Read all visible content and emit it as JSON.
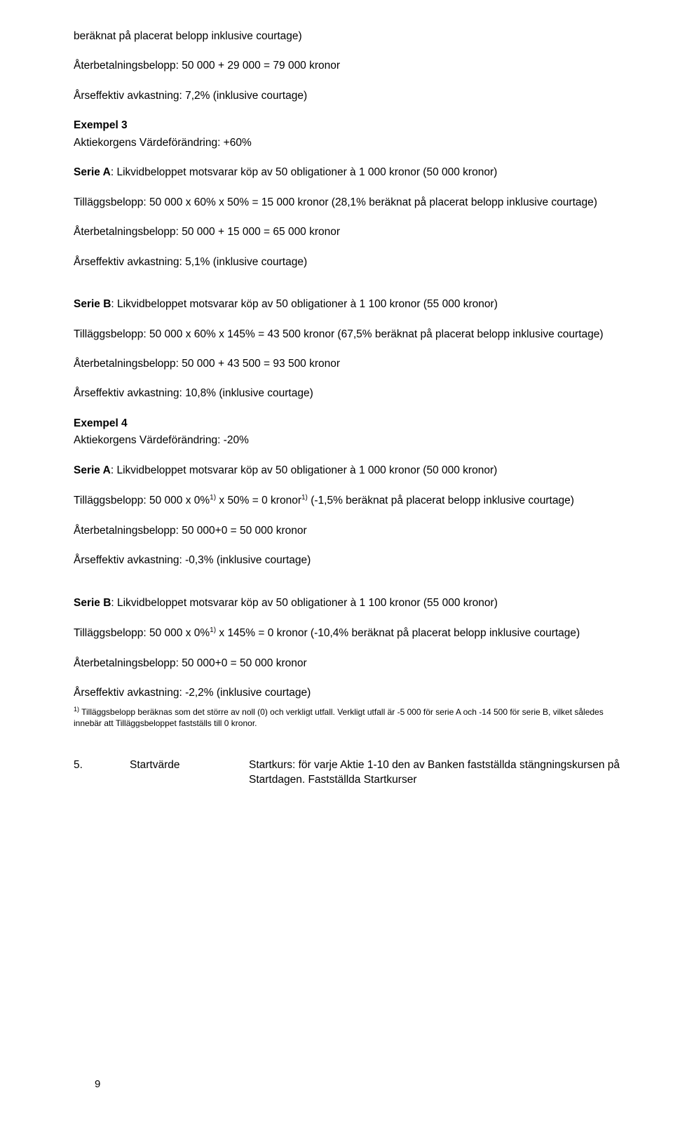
{
  "top": {
    "line1": "beräknat på placerat belopp inklusive courtage)",
    "line2": "Återbetalningsbelopp: 50 000 + 29 000 = 79 000 kronor",
    "line3": "Årseffektiv avkastning: 7,2% (inklusive courtage)"
  },
  "ex3": {
    "title": "Exempel 3",
    "sub": "Aktiekorgens Värdeförändring: +60%",
    "serieA": {
      "head_b": "Serie A",
      "head_rest": ": Likvidbeloppet motsvarar köp av 50 obligationer à 1 000 kronor (50 000 kronor)",
      "l1": " Tilläggsbelopp: 50 000 x 60% x 50% = 15 000 kronor (28,1% beräknat på placerat belopp inklusive courtage)",
      "l2": "Återbetalningsbelopp: 50 000 + 15 000 = 65 000 kronor",
      "l3": "Årseffektiv avkastning: 5,1% (inklusive courtage)"
    },
    "serieB": {
      "head_b": "Serie B",
      "head_rest": ": Likvidbeloppet motsvarar köp av 50 obligationer à 1 100 kronor (55 000 kronor)",
      "l1": " Tilläggsbelopp: 50 000 x 60% x 145% = 43 500 kronor (67,5% beräknat på placerat belopp inklusive courtage)",
      "l2": "Återbetalningsbelopp: 50 000 + 43 500 = 93 500 kronor",
      "l3": "Årseffektiv avkastning: 10,8% (inklusive courtage)"
    }
  },
  "ex4": {
    "title": "Exempel 4",
    "sub": "Aktiekorgens Värdeförändring: -20%",
    "serieA": {
      "head_b": "Serie A",
      "head_rest": ": Likvidbeloppet motsvarar köp av 50 obligationer à 1 000 kronor (50 000 kronor)",
      "l1a": " Tilläggsbelopp: 50 000 x 0%",
      "l1b": " x 50% = 0 kronor",
      "l1c": " (-1,5% beräknat på placerat belopp inklusive courtage)",
      "l2": "Återbetalningsbelopp: 50 000+0 = 50 000 kronor",
      "l3": "Årseffektiv avkastning: -0,3% (inklusive courtage)"
    },
    "serieB": {
      "head_b": "Serie B",
      "head_rest": ": Likvidbeloppet motsvarar köp av 50 obligationer à 1 100 kronor (55 000 kronor)",
      "l1a": " Tilläggsbelopp: 50 000 x 0%",
      "l1b": " x 145% = 0 kronor (-10,4% beräknat på placerat belopp inklusive courtage)",
      "l2": "Återbetalningsbelopp: 50 000+0 = 50 000 kronor",
      "l3": "Årseffektiv avkastning: -2,2% (inklusive courtage)"
    }
  },
  "footnote_sup": "1)",
  "footnote": " Tilläggsbelopp beräknas som det större av noll (0) och verkligt utfall. Verkligt utfall är -5 000 för serie A och -14 500 för serie B, vilket således innebär att Tilläggsbeloppet fastställs till 0 kronor.",
  "sec5": {
    "num": "5.",
    "label": "Startvärde",
    "text": "Startkurs: för varje Aktie 1-10 den av Banken fastställda stängningskursen på Startdagen. Fastställda Startkurser"
  },
  "sup": "1)",
  "pagenum": "9"
}
